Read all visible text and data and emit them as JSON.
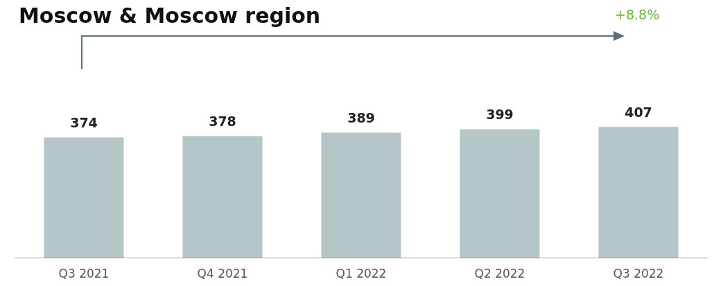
{
  "chart_data": {
    "type": "bar",
    "title": "Moscow & Moscow region",
    "categories": [
      "Q3 2021",
      "Q4 2021",
      "Q1 2022",
      "Q2 2022",
      "Q3 2022"
    ],
    "values": [
      374,
      378,
      389,
      399,
      407
    ],
    "color": "#b5c6c9",
    "tick_labels": "x",
    "data_labels": true,
    "grid": false,
    "annotations": [
      "+8.8%"
    ]
  }
}
